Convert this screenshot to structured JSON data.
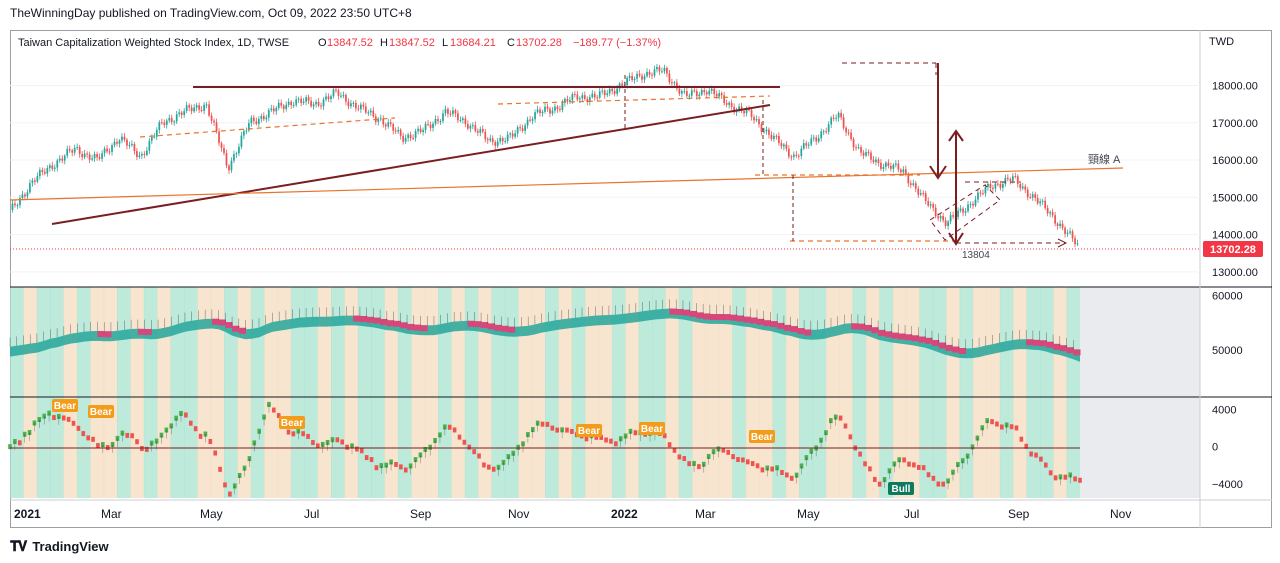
{
  "header": {
    "published": "TheWinningDay published on TradingView.com, Oct 09, 2022 23:50 UTC+8"
  },
  "legend": {
    "title": "Taiwan Capitalization Weighted Stock Index, 1D, TWSE",
    "open_label": "O",
    "open": "13847.52",
    "high_label": "H",
    "high": "13847.52",
    "low_label": "L",
    "low": "13684.21",
    "close_label": "C",
    "close": "13702.28",
    "change": "−189.77 (−1.37%)"
  },
  "price_axis": {
    "currency": "TWD",
    "last_price": "13702.28"
  },
  "annotations": {
    "neckline": "頸線 A",
    "level": "13804"
  },
  "colors": {
    "up": "#26a69a",
    "down": "#ef5350",
    "trend": "#7b1e22",
    "orange": "#e8742d",
    "teal_band": "#a7e3cf",
    "peach_band": "#f4dcc0",
    "ribbon_bull": "#26a69a",
    "ribbon_bear": "#d6477a",
    "bear_tag": "#f39c1a",
    "bull_tag": "#0c7a5c",
    "price_tag": "#f23645"
  },
  "footer": {
    "brand": "TradingView",
    "logo_icon": "tradingview-logo-icon"
  },
  "chart_data": {
    "type": "candlestick",
    "title": "Taiwan Capitalization Weighted Stock Index, 1D, TWSE",
    "x_ticks": [
      "2021",
      "Mar",
      "May",
      "Jul",
      "Sep",
      "Nov",
      "2022",
      "Mar",
      "May",
      "Jul",
      "Sep",
      "Nov"
    ],
    "price_pane": {
      "y_ticks": [
        13000,
        14000,
        15000,
        16000,
        17000,
        18000
      ],
      "ylim": [
        12700,
        18900
      ],
      "last_close": 13702.28,
      "approx_closes": [
        14600,
        15400,
        15900,
        16300,
        16000,
        16600,
        16100,
        17000,
        17300,
        17500,
        15800,
        17000,
        17300,
        17600,
        17500,
        17800,
        17400,
        17100,
        16600,
        16800,
        17300,
        17000,
        16500,
        16600,
        17200,
        17400,
        17700,
        17700,
        18000,
        18300,
        18400,
        17700,
        17900,
        17500,
        17200,
        16600,
        16100,
        16600,
        17200,
        16200,
        15900,
        15700,
        14900,
        14300,
        14800,
        15300,
        15500,
        15000,
        14400,
        13700
      ]
    },
    "ribbon_pane": {
      "y_ticks": [
        50000,
        60000
      ],
      "ylim": [
        42000,
        61000
      ]
    },
    "oscillator_pane": {
      "y_ticks": [
        -4000,
        0,
        4000
      ],
      "ylim": [
        -5500,
        5000
      ],
      "signals": [
        {
          "label": "Bear"
        },
        {
          "label": "Bear"
        },
        {
          "label": "Bear"
        },
        {
          "label": "Bear"
        },
        {
          "label": "Bear"
        },
        {
          "label": "Bear"
        },
        {
          "label": "Bull"
        }
      ]
    }
  }
}
